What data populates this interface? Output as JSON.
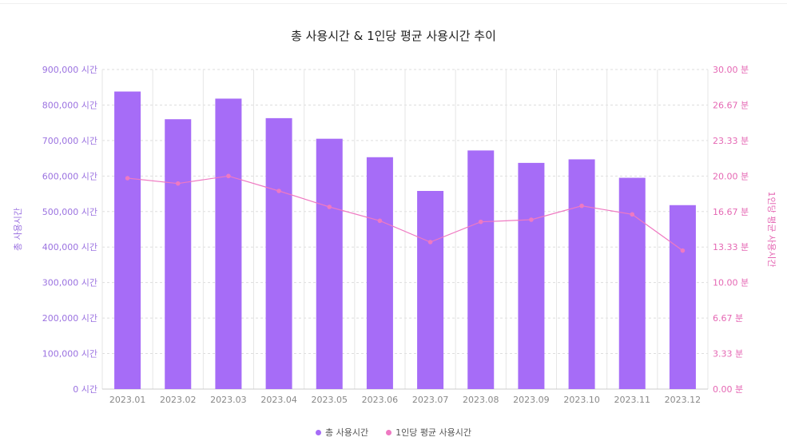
{
  "chart_data": {
    "type": "bar",
    "title": "총 사용시간 & 1인당 평균 사용시간 추이",
    "categories": [
      "2023.01",
      "2023.02",
      "2023.03",
      "2023.04",
      "2023.05",
      "2023.06",
      "2023.07",
      "2023.08",
      "2023.09",
      "2023.10",
      "2023.11",
      "2023.12"
    ],
    "series": [
      {
        "name": "총 사용시간",
        "type": "bar",
        "axis": "left",
        "color": "#a66cf7",
        "values": [
          838000,
          760000,
          818000,
          763000,
          705000,
          653000,
          558000,
          672000,
          637000,
          647000,
          595000,
          518000
        ]
      },
      {
        "name": "1인당 평균 사용시간",
        "type": "line",
        "axis": "right",
        "color": "#ef79c2",
        "values": [
          19.8,
          19.3,
          20.0,
          18.6,
          17.1,
          15.8,
          13.8,
          15.7,
          15.9,
          17.2,
          16.4,
          13.0
        ]
      }
    ],
    "ylabel": "총 사용시간",
    "y2label": "1인당 평균 사용시간",
    "ylim": [
      0,
      900000
    ],
    "y2lim": [
      0,
      30
    ],
    "yticks": [
      "0 시간",
      "100,000 시간",
      "200,000 시간",
      "300,000 시간",
      "400,000 시간",
      "500,000 시간",
      "600,000 시간",
      "700,000 시간",
      "800,000 시간",
      "900,000 시간"
    ],
    "y2ticks": [
      "0.00 분",
      "3.33 분",
      "6.67 분",
      "10.00 분",
      "13.33 분",
      "16.67 분",
      "20.00 분",
      "23.33 분",
      "26.67 분",
      "30.00 분"
    ],
    "grid": true,
    "legend_position": "bottom-center",
    "colors": {
      "bar": "#a66cf7",
      "line": "#ef79c2",
      "left_axis_text": "#9b72e0",
      "right_axis_text": "#e568b4"
    }
  }
}
